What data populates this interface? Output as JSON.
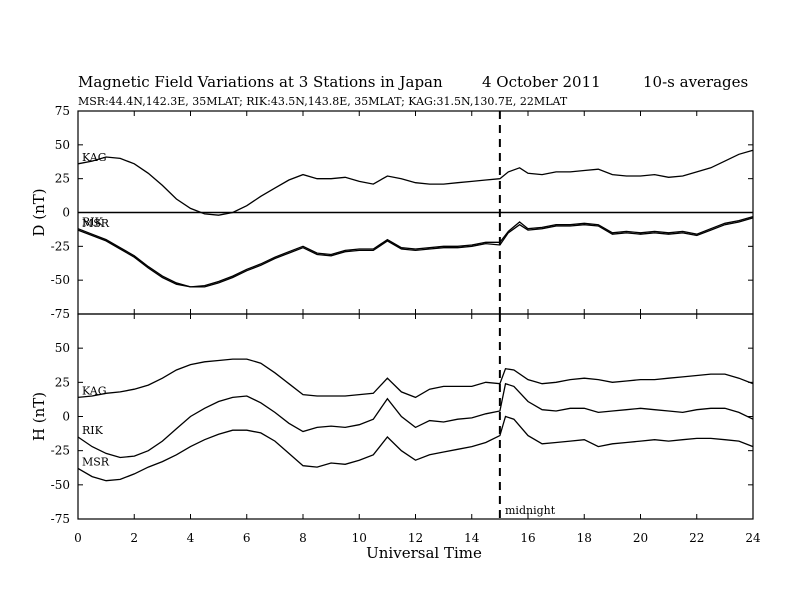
{
  "title": {
    "main": "Magnetic Field Variations at 3 Stations in Japan",
    "date": "4   October 2011",
    "averaging": "10-s averages",
    "stations_line": "MSR:44.4N,142.3E, 35MLAT;  RIK:43.5N,143.8E, 35MLAT;  KAG:31.5N,130.7E, 22MLAT"
  },
  "xlabel": "Universal Time",
  "annotation": "midnight",
  "chart_data": [
    {
      "type": "line",
      "id": "D-panel",
      "ylabel": "D (nT)",
      "xlim": [
        0,
        24
      ],
      "ylim": [
        -75,
        75
      ],
      "xticks": [
        0,
        2,
        4,
        6,
        8,
        10,
        12,
        14,
        16,
        18,
        20,
        22,
        24
      ],
      "yticks": [
        -75,
        -50,
        -25,
        0,
        25,
        50,
        75
      ],
      "zero_line": true,
      "vline": {
        "x": 15,
        "style": "dashed"
      },
      "series": [
        {
          "name": "KAG",
          "x": [
            0,
            0.5,
            1,
            1.5,
            2,
            2.5,
            3,
            3.5,
            4,
            4.5,
            5,
            5.5,
            6,
            6.5,
            7,
            7.5,
            8,
            8.5,
            9,
            9.5,
            10,
            10.5,
            11,
            11.5,
            12,
            12.5,
            13,
            13.5,
            14,
            14.5,
            15,
            15.3,
            15.7,
            16,
            16.5,
            17,
            17.5,
            18,
            18.5,
            19,
            19.5,
            20,
            20.5,
            21,
            21.5,
            22,
            22.5,
            23,
            23.5,
            24
          ],
          "y": [
            36,
            38,
            41,
            40,
            36,
            29,
            20,
            10,
            3,
            -1,
            -2,
            0,
            5,
            12,
            18,
            24,
            28,
            25,
            25,
            26,
            23,
            21,
            27,
            25,
            22,
            21,
            21,
            22,
            23,
            24,
            25,
            30,
            33,
            29,
            28,
            30,
            30,
            31,
            32,
            28,
            27,
            27,
            28,
            26,
            27,
            30,
            33,
            38,
            43,
            46
          ]
        },
        {
          "name": "RIK",
          "x": [
            0,
            0.5,
            1,
            1.5,
            2,
            2.5,
            3,
            3.5,
            4,
            4.5,
            5,
            5.5,
            6,
            6.5,
            7,
            7.5,
            8,
            8.5,
            9,
            9.5,
            10,
            10.5,
            11,
            11.5,
            12,
            12.5,
            13,
            13.5,
            14,
            14.5,
            15,
            15.3,
            15.7,
            16,
            16.5,
            17,
            17.5,
            18,
            18.5,
            19,
            19.5,
            20,
            20.5,
            21,
            21.5,
            22,
            22.5,
            23,
            23.5,
            24
          ],
          "y": [
            -12,
            -16,
            -20,
            -26,
            -32,
            -40,
            -47,
            -52,
            -55,
            -54,
            -51,
            -47,
            -42,
            -38,
            -33,
            -29,
            -25,
            -30,
            -31,
            -28,
            -27,
            -27,
            -20,
            -26,
            -27,
            -26,
            -25,
            -25,
            -24,
            -22,
            -22,
            -14,
            -7,
            -12,
            -11,
            -9,
            -9,
            -8,
            -9,
            -15,
            -14,
            -15,
            -14,
            -15,
            -14,
            -16,
            -12,
            -8,
            -6,
            -3
          ]
        },
        {
          "name": "MSR",
          "x": [
            0,
            0.5,
            1,
            1.5,
            2,
            2.5,
            3,
            3.5,
            4,
            4.5,
            5,
            5.5,
            6,
            6.5,
            7,
            7.5,
            8,
            8.5,
            9,
            9.5,
            10,
            10.5,
            11,
            11.5,
            12,
            12.5,
            13,
            13.5,
            14,
            14.5,
            15,
            15.3,
            15.7,
            16,
            16.5,
            17,
            17.5,
            18,
            18.5,
            19,
            19.5,
            20,
            20.5,
            21,
            21.5,
            22,
            22.5,
            23,
            23.5,
            24
          ],
          "y": [
            -13,
            -17,
            -21,
            -27,
            -33,
            -41,
            -48,
            -53,
            -55,
            -55,
            -52,
            -48,
            -43,
            -39,
            -34,
            -30,
            -26,
            -31,
            -32,
            -29,
            -28,
            -28,
            -21,
            -27,
            -28,
            -27,
            -26,
            -26,
            -25,
            -23,
            -24,
            -15,
            -9,
            -13,
            -12,
            -10,
            -10,
            -9,
            -10,
            -16,
            -15,
            -16,
            -15,
            -16,
            -15,
            -17,
            -13,
            -9,
            -7,
            -4
          ]
        }
      ]
    },
    {
      "type": "line",
      "id": "H-panel",
      "ylabel": "H (nT)",
      "xlim": [
        0,
        24
      ],
      "ylim": [
        -75,
        75
      ],
      "xticks": [
        0,
        2,
        4,
        6,
        8,
        10,
        12,
        14,
        16,
        18,
        20,
        22,
        24
      ],
      "yticks": [
        -75,
        -50,
        -25,
        0,
        25,
        50,
        75
      ],
      "zero_line": false,
      "vline": {
        "x": 15,
        "style": "dashed"
      },
      "series": [
        {
          "name": "KAG",
          "x": [
            0,
            0.5,
            1,
            1.5,
            2,
            2.5,
            3,
            3.5,
            4,
            4.5,
            5,
            5.5,
            6,
            6.5,
            7,
            7.5,
            8,
            8.5,
            9,
            9.5,
            10,
            10.5,
            11,
            11.5,
            12,
            12.5,
            13,
            13.5,
            14,
            14.5,
            15,
            15.2,
            15.5,
            16,
            16.5,
            17,
            17.5,
            18,
            18.5,
            19,
            19.5,
            20,
            20.5,
            21,
            21.5,
            22,
            22.5,
            23,
            23.5,
            24
          ],
          "y": [
            14,
            15,
            17,
            18,
            20,
            23,
            28,
            34,
            38,
            40,
            41,
            42,
            42,
            39,
            32,
            24,
            16,
            15,
            15,
            15,
            16,
            17,
            28,
            18,
            14,
            20,
            22,
            22,
            22,
            25,
            24,
            35,
            34,
            27,
            24,
            25,
            27,
            28,
            27,
            25,
            26,
            27,
            27,
            28,
            29,
            30,
            31,
            31,
            28,
            24
          ]
        },
        {
          "name": "RIK",
          "x": [
            0,
            0.5,
            1,
            1.5,
            2,
            2.5,
            3,
            3.5,
            4,
            4.5,
            5,
            5.5,
            6,
            6.5,
            7,
            7.5,
            8,
            8.5,
            9,
            9.5,
            10,
            10.5,
            11,
            11.5,
            12,
            12.5,
            13,
            13.5,
            14,
            14.5,
            15,
            15.2,
            15.5,
            16,
            16.5,
            17,
            17.5,
            18,
            18.5,
            19,
            19.5,
            20,
            20.5,
            21,
            21.5,
            22,
            22.5,
            23,
            23.5,
            24
          ],
          "y": [
            -15,
            -22,
            -27,
            -30,
            -29,
            -25,
            -18,
            -9,
            0,
            6,
            11,
            14,
            15,
            10,
            3,
            -5,
            -11,
            -8,
            -7,
            -8,
            -6,
            -2,
            13,
            0,
            -8,
            -3,
            -4,
            -2,
            -1,
            2,
            4,
            24,
            22,
            11,
            5,
            4,
            6,
            6,
            3,
            4,
            5,
            6,
            5,
            4,
            3,
            5,
            6,
            6,
            3,
            -2
          ]
        },
        {
          "name": "MSR",
          "x": [
            0,
            0.5,
            1,
            1.5,
            2,
            2.5,
            3,
            3.5,
            4,
            4.5,
            5,
            5.5,
            6,
            6.5,
            7,
            7.5,
            8,
            8.5,
            9,
            9.5,
            10,
            10.5,
            11,
            11.5,
            12,
            12.5,
            13,
            13.5,
            14,
            14.5,
            15,
            15.2,
            15.5,
            16,
            16.5,
            17,
            17.5,
            18,
            18.5,
            19,
            19.5,
            20,
            20.5,
            21,
            21.5,
            22,
            22.5,
            23,
            23.5,
            24
          ],
          "y": [
            -38,
            -44,
            -47,
            -46,
            -42,
            -37,
            -33,
            -28,
            -22,
            -17,
            -13,
            -10,
            -10,
            -12,
            -18,
            -27,
            -36,
            -37,
            -34,
            -35,
            -32,
            -28,
            -15,
            -25,
            -32,
            -28,
            -26,
            -24,
            -22,
            -19,
            -14,
            0,
            -2,
            -14,
            -20,
            -19,
            -18,
            -17,
            -22,
            -20,
            -19,
            -18,
            -17,
            -18,
            -17,
            -16,
            -16,
            -17,
            -18,
            -22
          ]
        }
      ]
    }
  ]
}
